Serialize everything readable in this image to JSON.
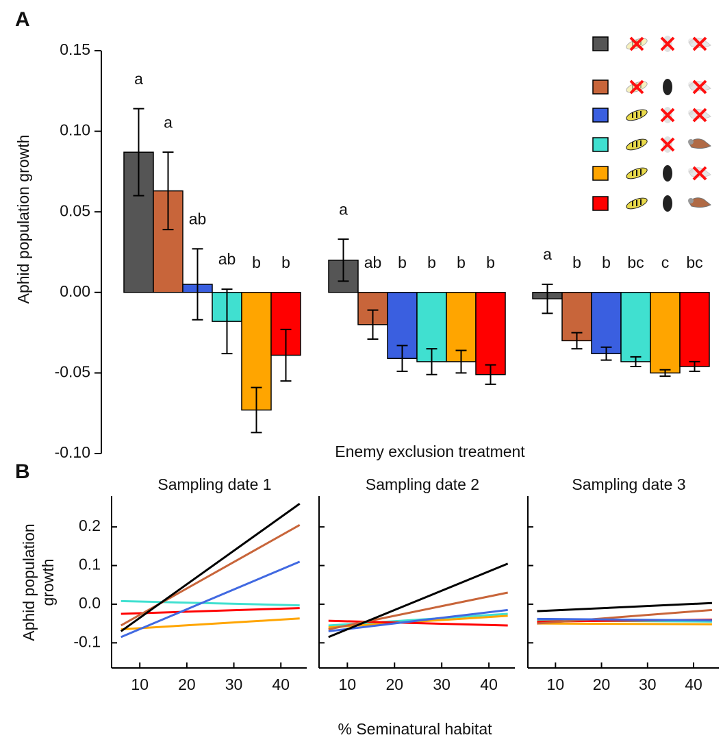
{
  "chart_data": [
    {
      "type": "bar",
      "panel_label": "A",
      "y_label": "Aphid population growth",
      "x_label": "Enemy exclusion treatment",
      "ylim": [
        -0.1,
        0.15
      ],
      "yticks": [
        {
          "value": -0.1,
          "label": "-0.10"
        },
        -0.05,
        {
          "value": 0.0,
          "label": "0.00"
        },
        0.05,
        {
          "value": 0.1,
          "label": "0.10"
        },
        0.15
      ],
      "series": [
        {
          "color": "#555555",
          "values": [
            0.087,
            0.02,
            -0.004
          ],
          "errors": [
            0.027,
            0.013,
            0.009
          ],
          "letters": [
            "a",
            "a",
            "a"
          ]
        },
        {
          "color": "#c8653a",
          "values": [
            0.063,
            -0.02,
            -0.03
          ],
          "errors": [
            0.024,
            0.009,
            0.005
          ],
          "letters": [
            "a",
            "ab",
            "b"
          ]
        },
        {
          "color": "#3a5fe0",
          "values": [
            0.005,
            -0.041,
            -0.038
          ],
          "errors": [
            0.022,
            0.008,
            0.004
          ],
          "letters": [
            "ab",
            "b",
            "b"
          ]
        },
        {
          "color": "#40e0d0",
          "values": [
            -0.018,
            -0.043,
            -0.043
          ],
          "errors": [
            0.02,
            0.008,
            0.003
          ],
          "letters": [
            "ab",
            "b",
            "bc"
          ]
        },
        {
          "color": "#ffa500",
          "values": [
            -0.073,
            -0.043,
            -0.05
          ],
          "errors": [
            0.014,
            0.007,
            0.002
          ],
          "letters": [
            "b",
            "b",
            "c"
          ]
        },
        {
          "color": "#ff0000",
          "values": [
            -0.039,
            -0.051,
            -0.046
          ],
          "errors": [
            0.016,
            0.006,
            0.003
          ],
          "letters": [
            "b",
            "b",
            "bc"
          ]
        }
      ]
    },
    {
      "type": "line",
      "panel_label": "B",
      "title": "Sampling date 1",
      "y_label": [
        "Aphid population",
        "growth"
      ],
      "x_label": "% Seminatural habitat",
      "xlim": [
        4,
        45.5
      ],
      "xticks": [
        10,
        20,
        30,
        40
      ],
      "ylim": [
        -0.165,
        0.28
      ],
      "yticks": [
        -0.1,
        {
          "value": 0.0,
          "label": "0.0"
        },
        0.1,
        0.2
      ],
      "x": [
        6,
        44
      ],
      "series": [
        {
          "color": "#40e0d0",
          "values": [
            0.008,
            -0.003
          ]
        },
        {
          "color": "#ffa500",
          "values": [
            -0.065,
            -0.037
          ]
        },
        {
          "color": "#ff0000",
          "values": [
            -0.025,
            -0.01
          ]
        },
        {
          "color": "#c8653a",
          "values": [
            -0.055,
            0.205
          ]
        },
        {
          "color": "#4169e1",
          "values": [
            -0.085,
            0.11
          ]
        },
        {
          "color": "#000000",
          "values": [
            -0.07,
            0.26
          ]
        }
      ]
    },
    {
      "type": "line",
      "title": "Sampling date 2",
      "xlim": [
        4,
        45.5
      ],
      "xticks": [
        10,
        20,
        30,
        40
      ],
      "ylim": [
        -0.165,
        0.28
      ],
      "yticks": [
        -0.1,
        0,
        0.1,
        0.2
      ],
      "x": [
        6,
        44
      ],
      "series": [
        {
          "color": "#40e0d0",
          "values": [
            -0.055,
            -0.025
          ]
        },
        {
          "color": "#ffa500",
          "values": [
            -0.06,
            -0.03
          ]
        },
        {
          "color": "#ff0000",
          "values": [
            -0.043,
            -0.055
          ]
        },
        {
          "color": "#c8653a",
          "values": [
            -0.065,
            0.03
          ]
        },
        {
          "color": "#4169e1",
          "values": [
            -0.07,
            -0.015
          ]
        },
        {
          "color": "#000000",
          "values": [
            -0.085,
            0.105
          ]
        }
      ]
    },
    {
      "type": "line",
      "title": "Sampling date 3",
      "xlim": [
        4,
        45.5
      ],
      "xticks": [
        10,
        20,
        30,
        40
      ],
      "ylim": [
        -0.165,
        0.28
      ],
      "yticks": [
        -0.1,
        0,
        0.1,
        0.2
      ],
      "x": [
        6,
        44
      ],
      "series": [
        {
          "color": "#40e0d0",
          "values": [
            -0.042,
            -0.045
          ]
        },
        {
          "color": "#ffa500",
          "values": [
            -0.05,
            -0.052
          ]
        },
        {
          "color": "#ff0000",
          "values": [
            -0.045,
            -0.04
          ]
        },
        {
          "color": "#c8653a",
          "values": [
            -0.05,
            -0.015
          ]
        },
        {
          "color": "#4169e1",
          "values": [
            -0.038,
            -0.042
          ]
        },
        {
          "color": "#000000",
          "values": [
            -0.018,
            0.003
          ]
        }
      ]
    }
  ]
}
